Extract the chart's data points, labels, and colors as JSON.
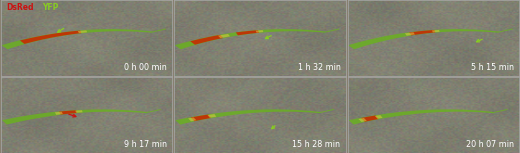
{
  "figsize": [
    5.2,
    1.53
  ],
  "dpi": 100,
  "nrows": 2,
  "ncols": 3,
  "bg_color": "#888070",
  "time_labels": [
    "0 h 00 min",
    "1 h 32 min",
    "5 h 15 min",
    "9 h 17 min",
    "15 h 28 min",
    "20 h 07 min"
  ],
  "label_color": "#ffffff",
  "label_fontsize": 5.8,
  "dsred_color": "#cc1111",
  "yfp_color": "#88cc22",
  "legend_fontsize": 5.5,
  "border_color": "#aaaaaa",
  "arrow_green": [
    [
      0.38,
      0.65,
      -0.07,
      -0.1
    ],
    [
      0.58,
      0.55,
      -0.07,
      -0.08
    ],
    [
      0.8,
      0.5,
      -0.07,
      -0.07
    ],
    null,
    [
      0.6,
      0.38,
      -0.05,
      -0.1
    ],
    null
  ],
  "arrow_red": [
    0.38,
    0.52,
    0.08,
    -0.06
  ],
  "panel_seed": [
    1,
    2,
    3,
    4,
    5,
    6
  ]
}
